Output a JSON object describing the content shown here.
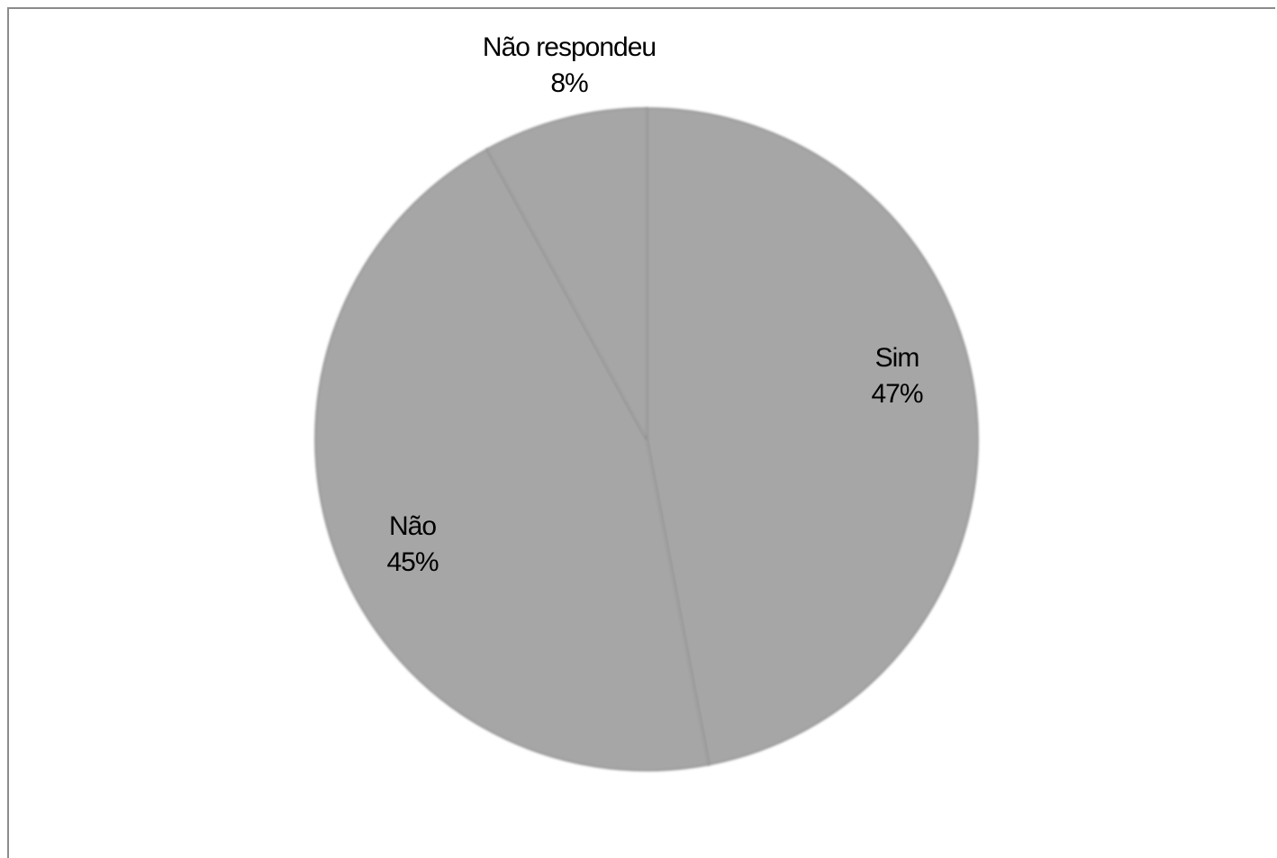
{
  "chart_data": {
    "type": "pie",
    "slices": [
      {
        "label": "Sim",
        "value": 47,
        "percent_label": "47%"
      },
      {
        "label": "Não",
        "value": 45,
        "percent_label": "45%"
      },
      {
        "label": "Não respondeu",
        "value": 8,
        "percent_label": "8%"
      }
    ],
    "start": "top",
    "direction": "clockwise",
    "legend": "none",
    "slice_color": "#a6a6a6",
    "border_color": "#8c8c8c"
  }
}
